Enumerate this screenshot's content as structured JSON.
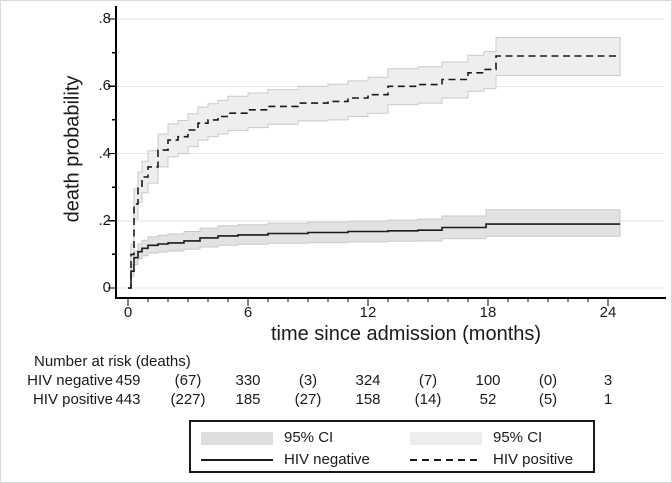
{
  "figure": {
    "y_axis": {
      "title": "death probability",
      "tick_labels": [
        ".8",
        ".6",
        ".4",
        ".2",
        "0"
      ],
      "tick_values": [
        0.8,
        0.6,
        0.4,
        0.2,
        0
      ]
    },
    "x_axis": {
      "title": "time since admission (months)",
      "tick_labels": [
        "0",
        "6",
        "12",
        "18",
        "24"
      ],
      "tick_values": [
        0,
        6,
        12,
        18,
        24
      ]
    }
  },
  "risk_table": {
    "header": "Number at risk (deaths)",
    "column_months": [
      0,
      3,
      6,
      9,
      12,
      15,
      18,
      21,
      24
    ],
    "rows": [
      {
        "label": "HIV negative",
        "values": [
          "459",
          "(67)",
          "330",
          "(3)",
          "324",
          "(7)",
          "100",
          "(0)",
          "3"
        ]
      },
      {
        "label": "HIV positive",
        "values": [
          "443",
          "(227)",
          "185",
          "(27)",
          "158",
          "(14)",
          "52",
          "(5)",
          "1"
        ]
      }
    ]
  },
  "legend": {
    "items": [
      {
        "type": "band",
        "color": "#dedede",
        "label": "95% CI"
      },
      {
        "type": "band",
        "color": "#ededed",
        "label": "95% CI"
      },
      {
        "type": "solid-line",
        "color": "#1a1a1a",
        "label": "HIV negative"
      },
      {
        "type": "dashed-line",
        "color": "#1a1a1a",
        "label": "HIV positive"
      }
    ]
  },
  "colors": {
    "line": "#1a1a1a",
    "grid": "#e6e6e6",
    "band_negative": "#e2e2e2",
    "band_positive": "#eeeeee",
    "band_edge": "#c9c9c9",
    "axis": "#000000",
    "text": "#1a1a1a"
  },
  "chart_data": {
    "type": "line",
    "subtype": "step-survival-with-ci",
    "title": "",
    "xlabel": "time since admission (months)",
    "ylabel": "death probability",
    "xlim": [
      0,
      26
    ],
    "ylim": [
      0,
      0.8
    ],
    "x_ticks": [
      0,
      6,
      12,
      18,
      24
    ],
    "y_ticks": [
      0,
      0.2,
      0.4,
      0.6,
      0.8
    ],
    "grid": "horizontal",
    "legend_position": "bottom",
    "point_format": [
      "month",
      "death_probability",
      "ci_lower",
      "ci_upper"
    ],
    "series": [
      {
        "name": "HIV negative",
        "line_style": "solid",
        "points": [
          [
            0,
            0,
            0,
            0
          ],
          [
            0.15,
            0.05,
            0.035,
            0.065
          ],
          [
            0.3,
            0.09,
            0.07,
            0.11
          ],
          [
            0.5,
            0.108,
            0.087,
            0.131
          ],
          [
            0.7,
            0.118,
            0.096,
            0.142
          ],
          [
            1,
            0.127,
            0.104,
            0.152
          ],
          [
            1.5,
            0.131,
            0.107,
            0.157
          ],
          [
            2,
            0.134,
            0.11,
            0.161
          ],
          [
            2.8,
            0.14,
            0.115,
            0.168
          ],
          [
            3.6,
            0.149,
            0.122,
            0.178
          ],
          [
            4.5,
            0.155,
            0.127,
            0.185
          ],
          [
            5.5,
            0.158,
            0.13,
            0.188
          ],
          [
            7,
            0.162,
            0.133,
            0.193
          ],
          [
            9,
            0.165,
            0.135,
            0.196
          ],
          [
            11,
            0.168,
            0.137,
            0.199
          ],
          [
            13,
            0.17,
            0.139,
            0.202
          ],
          [
            14.5,
            0.172,
            0.14,
            0.205
          ],
          [
            15.7,
            0.18,
            0.147,
            0.214
          ],
          [
            17.9,
            0.19,
            0.154,
            0.233
          ],
          [
            24.6,
            0.19,
            0.154,
            0.233
          ]
        ]
      },
      {
        "name": "HIV positive",
        "line_style": "dashed",
        "points": [
          [
            0,
            0,
            0,
            0
          ],
          [
            0.15,
            0.1,
            0.07,
            0.13
          ],
          [
            0.3,
            0.25,
            0.205,
            0.295
          ],
          [
            0.5,
            0.3,
            0.255,
            0.345
          ],
          [
            0.7,
            0.33,
            0.283,
            0.377
          ],
          [
            1,
            0.36,
            0.312,
            0.408
          ],
          [
            1.5,
            0.41,
            0.36,
            0.458
          ],
          [
            2,
            0.44,
            0.39,
            0.488
          ],
          [
            2.5,
            0.45,
            0.4,
            0.498
          ],
          [
            3,
            0.47,
            0.42,
            0.518
          ],
          [
            3.5,
            0.49,
            0.44,
            0.538
          ],
          [
            4,
            0.5,
            0.45,
            0.548
          ],
          [
            4.5,
            0.51,
            0.458,
            0.558
          ],
          [
            5,
            0.52,
            0.468,
            0.57
          ],
          [
            6,
            0.53,
            0.477,
            0.58
          ],
          [
            7,
            0.54,
            0.487,
            0.59
          ],
          [
            8.5,
            0.55,
            0.497,
            0.6
          ],
          [
            10,
            0.555,
            0.5,
            0.606
          ],
          [
            11,
            0.565,
            0.51,
            0.616
          ],
          [
            12,
            0.575,
            0.52,
            0.627
          ],
          [
            13,
            0.6,
            0.545,
            0.652
          ],
          [
            14.5,
            0.605,
            0.55,
            0.658
          ],
          [
            15.7,
            0.62,
            0.565,
            0.672
          ],
          [
            17,
            0.64,
            0.585,
            0.692
          ],
          [
            17.8,
            0.65,
            0.593,
            0.703
          ],
          [
            18.4,
            0.69,
            0.632,
            0.745
          ],
          [
            24.6,
            0.69,
            0.632,
            0.745
          ]
        ]
      }
    ]
  }
}
